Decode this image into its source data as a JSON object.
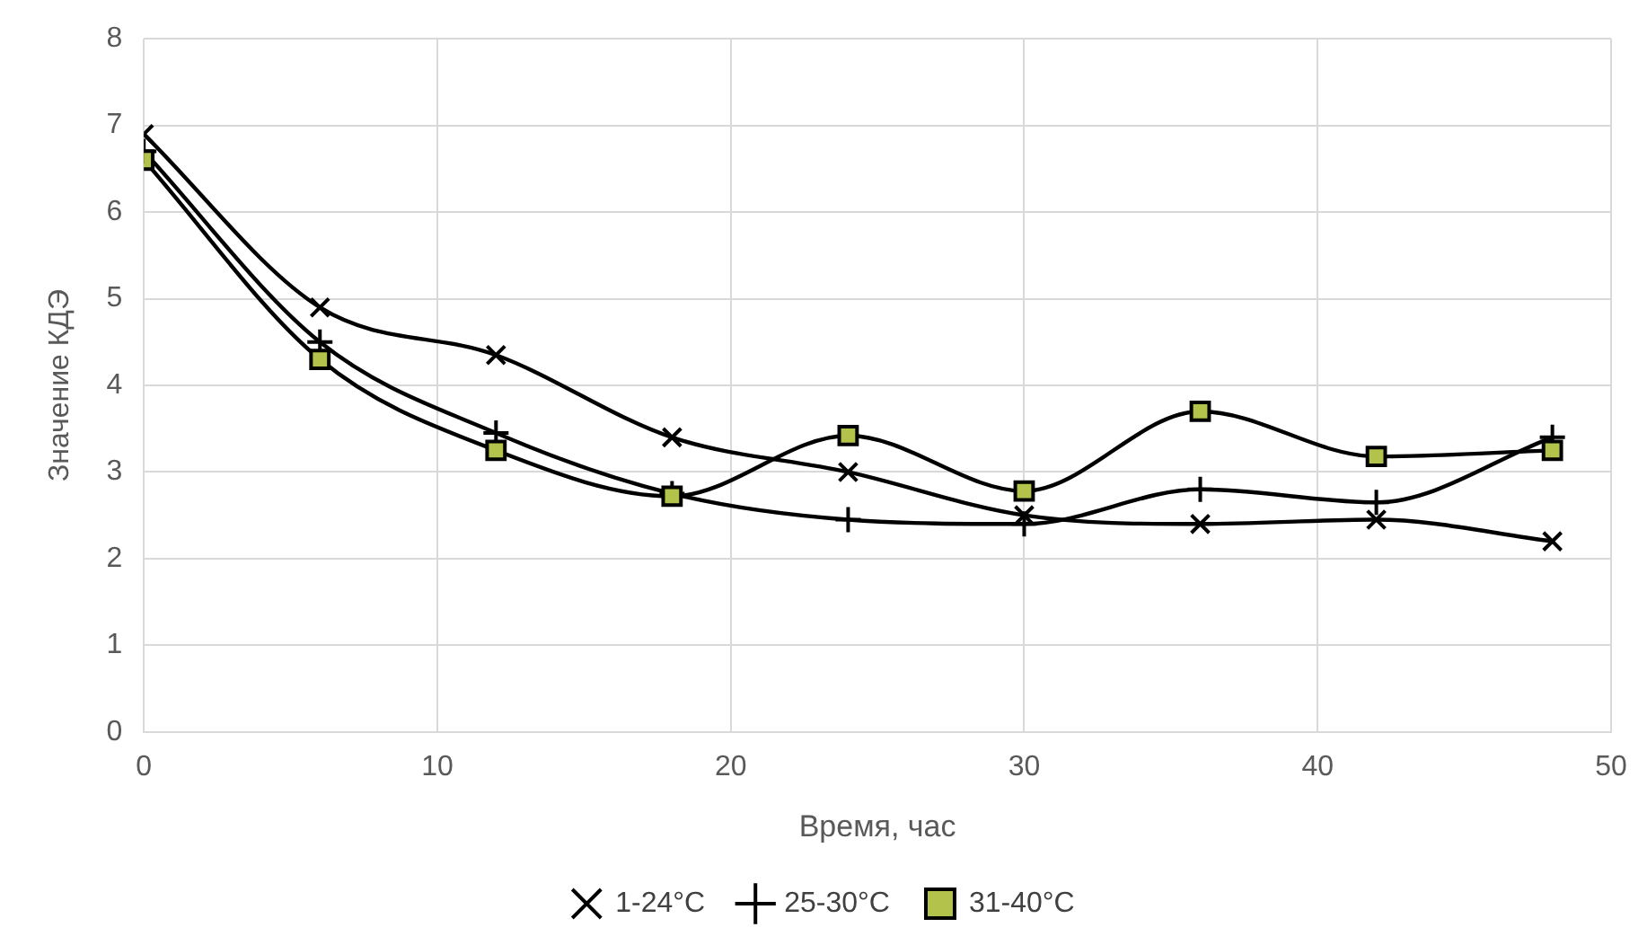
{
  "chart_data": {
    "type": "line",
    "xlabel": "Время, час",
    "ylabel": "Значение КДЭ",
    "x": [
      0,
      6,
      12,
      18,
      24,
      30,
      36,
      42,
      48
    ],
    "series": [
      {
        "name": "1-24°C",
        "color": "#000000",
        "marker": "cross",
        "values": [
          6.9,
          4.9,
          4.35,
          3.4,
          3.0,
          2.5,
          2.4,
          2.45,
          2.2
        ]
      },
      {
        "name": "25-30°C",
        "color": "#000000",
        "marker": "plus",
        "values": [
          6.7,
          4.5,
          3.45,
          2.75,
          2.45,
          2.4,
          2.8,
          2.65,
          3.4
        ]
      },
      {
        "name": "31-40°C",
        "color": "#b3c24a",
        "marker": "square",
        "values": [
          6.6,
          4.3,
          3.25,
          2.72,
          3.42,
          2.78,
          3.7,
          3.18,
          3.25
        ]
      }
    ],
    "xlim": [
      0,
      50
    ],
    "xticks": [
      0,
      10,
      20,
      30,
      40,
      50
    ],
    "ylim": [
      0,
      8
    ],
    "yticks": [
      0,
      1,
      2,
      3,
      4,
      5,
      6,
      7,
      8
    ],
    "grid": true,
    "legend": "bottom"
  }
}
